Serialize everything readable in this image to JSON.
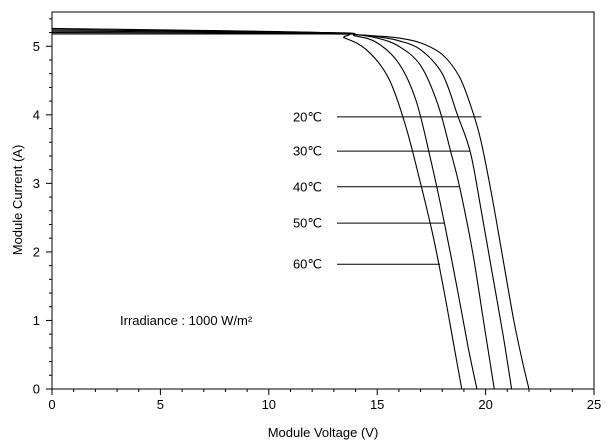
{
  "chart_data": {
    "type": "line",
    "xlabel": "Module Voltage (V)",
    "ylabel": "Module Current (A)",
    "xlim": [
      0,
      25
    ],
    "ylim": [
      0,
      5.5
    ],
    "x_ticks": [
      "0",
      "5",
      "10",
      "15",
      "20",
      "25"
    ],
    "y_ticks": [
      "0",
      "1",
      "2",
      "3",
      "4",
      "5"
    ],
    "grid": false,
    "annotation": "Irradiance : 1000 W/m²",
    "series": [
      {
        "name": "20℃",
        "label_y": 3.97,
        "label_end_x": 19.8,
        "isc": 5.18,
        "voc": 22.0,
        "points": [
          [
            0,
            5.18
          ],
          [
            12.5,
            5.18
          ],
          [
            14,
            5.17
          ],
          [
            15,
            5.15
          ],
          [
            16,
            5.12
          ],
          [
            17,
            5.05
          ],
          [
            18,
            4.88
          ],
          [
            18.8,
            4.55
          ],
          [
            19.4,
            4.05
          ],
          [
            19.8,
            3.6
          ],
          [
            20.3,
            2.8
          ],
          [
            20.8,
            1.9
          ],
          [
            21.3,
            1.0
          ],
          [
            21.7,
            0.4
          ],
          [
            22.0,
            0
          ]
        ]
      },
      {
        "name": "30℃",
        "label_y": 3.47,
        "label_end_x": 19.3,
        "isc": 5.2,
        "voc": 21.2,
        "points": [
          [
            0,
            5.2
          ],
          [
            12.5,
            5.19
          ],
          [
            14,
            5.17
          ],
          [
            15,
            5.14
          ],
          [
            16,
            5.08
          ],
          [
            17,
            4.95
          ],
          [
            18,
            4.6
          ],
          [
            18.7,
            4.0
          ],
          [
            19.3,
            3.45
          ],
          [
            19.8,
            2.6
          ],
          [
            20.3,
            1.7
          ],
          [
            20.8,
            0.8
          ],
          [
            21.2,
            0
          ]
        ]
      },
      {
        "name": "40℃",
        "label_y": 2.95,
        "label_end_x": 18.8,
        "isc": 5.22,
        "voc": 20.4,
        "points": [
          [
            0,
            5.22
          ],
          [
            12.5,
            5.2
          ],
          [
            14,
            5.17
          ],
          [
            15,
            5.12
          ],
          [
            16,
            5.0
          ],
          [
            17,
            4.72
          ],
          [
            17.8,
            4.15
          ],
          [
            18.4,
            3.45
          ],
          [
            18.8,
            2.95
          ],
          [
            19.4,
            2.0
          ],
          [
            19.9,
            1.0
          ],
          [
            20.4,
            0
          ]
        ]
      },
      {
        "name": "50℃",
        "label_y": 2.42,
        "label_end_x": 18.1,
        "isc": 5.24,
        "voc": 19.6,
        "points": [
          [
            0,
            5.24
          ],
          [
            12.5,
            5.2
          ],
          [
            14,
            5.15
          ],
          [
            15,
            5.05
          ],
          [
            16,
            4.75
          ],
          [
            16.8,
            4.2
          ],
          [
            17.5,
            3.3
          ],
          [
            18.1,
            2.42
          ],
          [
            18.7,
            1.45
          ],
          [
            19.2,
            0.6
          ],
          [
            19.6,
            0
          ]
        ]
      },
      {
        "name": "60℃",
        "label_y": 1.82,
        "label_end_x": 17.9,
        "isc": 5.26,
        "voc": 18.9,
        "points": [
          [
            0,
            5.26
          ],
          [
            12.5,
            5.2
          ],
          [
            13.5,
            5.12
          ],
          [
            14.5,
            4.95
          ],
          [
            15.5,
            4.55
          ],
          [
            16.3,
            3.85
          ],
          [
            17,
            3.0
          ],
          [
            17.6,
            2.2
          ],
          [
            18.1,
            1.4
          ],
          [
            18.5,
            0.7
          ],
          [
            18.9,
            0
          ]
        ]
      }
    ]
  }
}
